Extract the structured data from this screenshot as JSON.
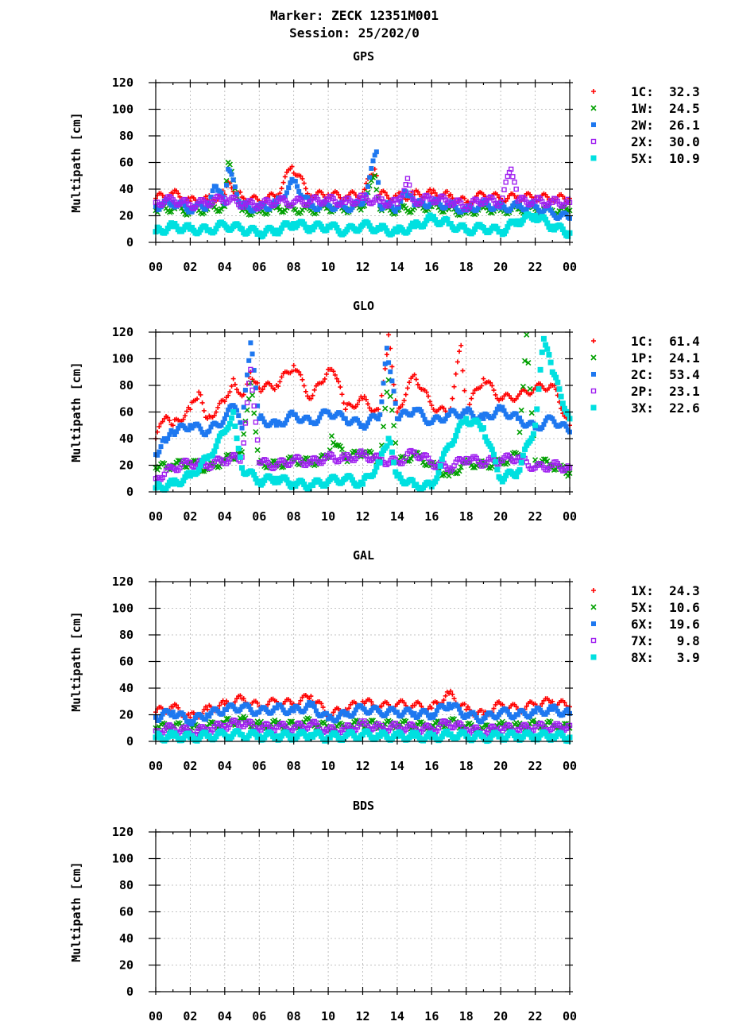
{
  "header": {
    "line1": "Marker: ZECK 12351M001",
    "line2": "Session: 25/202/0"
  },
  "colors": {
    "red": "#ff0000",
    "green": "#00a000",
    "blue": "#1e78f0",
    "purple": "#a020f0",
    "cyan": "#00e0e0"
  },
  "chart_data": [
    {
      "type": "scatter",
      "title": "GPS",
      "ylabel": "Multipath [cm]",
      "ylim": [
        0,
        120
      ],
      "xlim": [
        0,
        24
      ],
      "xticks": [
        "00",
        "02",
        "04",
        "06",
        "08",
        "10",
        "12",
        "14",
        "16",
        "18",
        "20",
        "22",
        "00"
      ],
      "yticks": [
        "0",
        "20",
        "40",
        "60",
        "80",
        "100",
        "120"
      ],
      "grid": true,
      "legend_position": "right",
      "series": [
        {
          "name": "1C",
          "rms": "32.3",
          "marker": "plus",
          "color": "red",
          "x": [
            0,
            1,
            2,
            3,
            4,
            4.2,
            5,
            6,
            7,
            7.9,
            9,
            10,
            11,
            12,
            12.7,
            13,
            14,
            15,
            16,
            17,
            18,
            19,
            20,
            21,
            22,
            23,
            24
          ],
          "y": [
            33,
            37,
            31,
            32,
            36,
            45,
            34,
            31,
            35,
            57,
            35,
            36,
            34,
            37,
            55,
            36,
            34,
            36,
            37,
            35,
            30,
            36,
            33,
            34,
            34,
            33,
            33
          ]
        },
        {
          "name": "1W",
          "rms": "24.5",
          "marker": "cross",
          "color": "green",
          "x": [
            0,
            1,
            2,
            3,
            4,
            4.2,
            5,
            6,
            7,
            8,
            9,
            10,
            11,
            12,
            12.7,
            13,
            14,
            15,
            16,
            17,
            18,
            19,
            20,
            21,
            22,
            23,
            24
          ],
          "y": [
            24,
            26,
            23,
            25,
            27,
            60,
            24,
            23,
            26,
            25,
            24,
            26,
            25,
            27,
            50,
            25,
            24,
            26,
            27,
            25,
            22,
            26,
            24,
            25,
            25,
            24,
            24
          ]
        },
        {
          "name": "2W",
          "rms": "26.1",
          "marker": "square",
          "color": "blue",
          "x": [
            0,
            1,
            2,
            3,
            3.5,
            4,
            4.2,
            5,
            6,
            7,
            8,
            9,
            10,
            11,
            12,
            12.8,
            13,
            14,
            14.5,
            15,
            16,
            17,
            18,
            19,
            20,
            21,
            22,
            23,
            24
          ],
          "y": [
            27,
            30,
            25,
            28,
            42,
            29,
            55,
            27,
            26,
            29,
            46,
            27,
            28,
            26,
            29,
            68,
            28,
            26,
            38,
            28,
            30,
            28,
            24,
            29,
            26,
            27,
            27,
            22,
            18
          ]
        },
        {
          "name": "2X",
          "rms": "30.0",
          "marker": "opensquare",
          "color": "purple",
          "x": [
            0,
            1,
            2,
            3,
            4,
            5,
            6,
            7,
            8,
            9,
            10,
            11,
            12,
            13,
            14,
            14.6,
            15,
            16,
            17,
            18,
            19,
            20,
            20.6,
            21,
            22,
            23,
            24
          ],
          "y": [
            30,
            32,
            28,
            30,
            33,
            29,
            28,
            31,
            30,
            31,
            32,
            30,
            33,
            31,
            29,
            48,
            31,
            33,
            31,
            27,
            32,
            30,
            55,
            31,
            31,
            30,
            30
          ]
        },
        {
          "name": "5X",
          "rms": "10.9",
          "marker": "filledsquare",
          "color": "cyan",
          "x": [
            0,
            1,
            2,
            3,
            4,
            5,
            6,
            7,
            8,
            9,
            10,
            11,
            12,
            13,
            14,
            15,
            16,
            17,
            18,
            19,
            20,
            21,
            22,
            23,
            24
          ],
          "y": [
            8,
            12,
            10,
            9,
            13,
            10,
            7,
            9,
            14,
            11,
            12,
            8,
            13,
            10,
            8,
            12,
            18,
            14,
            9,
            11,
            8,
            16,
            20,
            12,
            7
          ]
        }
      ]
    },
    {
      "type": "scatter",
      "title": "GLO",
      "ylabel": "Multipath [cm]",
      "ylim": [
        0,
        120
      ],
      "xlim": [
        0,
        24
      ],
      "xticks": [
        "00",
        "02",
        "04",
        "06",
        "08",
        "10",
        "12",
        "14",
        "16",
        "18",
        "20",
        "22",
        "00"
      ],
      "yticks": [
        "0",
        "20",
        "40",
        "60",
        "80",
        "100",
        "120"
      ],
      "grid": true,
      "legend_position": "right",
      "series": [
        {
          "name": "1C",
          "rms": "61.4",
          "marker": "plus",
          "color": "red",
          "x": [
            0,
            0.5,
            1,
            2,
            2.5,
            3,
            4,
            4.5,
            5,
            5.5,
            6,
            7,
            8,
            9,
            10,
            10.5,
            11,
            12,
            13,
            13.5,
            14,
            15,
            16,
            17,
            17.7,
            18,
            19,
            20,
            21,
            22,
            23,
            24
          ],
          "y": [
            40,
            55,
            50,
            62,
            75,
            55,
            68,
            85,
            72,
            90,
            78,
            80,
            95,
            70,
            92,
            85,
            62,
            70,
            58,
            118,
            60,
            88,
            65,
            58,
            110,
            62,
            85,
            70,
            72,
            78,
            80,
            50
          ]
        },
        {
          "name": "1P",
          "rms": "24.1",
          "marker": "cross",
          "color": "green",
          "x": [
            0,
            1,
            2,
            3,
            4,
            5,
            5.5,
            6,
            7,
            8,
            9,
            10,
            10.2,
            11,
            12,
            13,
            13.5,
            14,
            15,
            16,
            17,
            18,
            19,
            20,
            21,
            21.5,
            22,
            23,
            24
          ],
          "y": [
            18,
            20,
            22,
            17,
            24,
            30,
            82,
            22,
            20,
            24,
            22,
            26,
            42,
            25,
            30,
            24,
            84,
            22,
            28,
            20,
            12,
            22,
            20,
            22,
            28,
            118,
            24,
            20,
            14
          ]
        },
        {
          "name": "2C",
          "rms": "53.4",
          "marker": "square",
          "color": "blue",
          "x": [
            0,
            0.5,
            1,
            2,
            3,
            4,
            4.5,
            5,
            5.5,
            6,
            7,
            8,
            9,
            10,
            11,
            12,
            13,
            13.4,
            14,
            15,
            16,
            17,
            18,
            19,
            20,
            21,
            22,
            23,
            24
          ],
          "y": [
            28,
            40,
            45,
            50,
            45,
            55,
            65,
            48,
            112,
            55,
            50,
            58,
            52,
            60,
            55,
            50,
            58,
            108,
            55,
            62,
            52,
            58,
            60,
            55,
            62,
            55,
            48,
            55,
            45
          ]
        },
        {
          "name": "2P",
          "rms": "23.1",
          "marker": "opensquare",
          "color": "purple",
          "x": [
            0,
            1,
            2,
            3,
            4,
            5,
            5.5,
            6,
            7,
            8,
            9,
            10,
            11,
            12,
            13,
            14,
            15,
            16,
            17,
            18,
            19,
            20,
            21,
            22,
            23,
            24
          ],
          "y": [
            10,
            18,
            22,
            20,
            24,
            26,
            92,
            22,
            20,
            24,
            22,
            26,
            25,
            28,
            24,
            22,
            30,
            22,
            18,
            25,
            22,
            24,
            26,
            18,
            20,
            18
          ]
        },
        {
          "name": "3X",
          "rms": "22.6",
          "marker": "filledsquare",
          "color": "cyan",
          "x": [
            0,
            1,
            2,
            3,
            4,
            4.5,
            5,
            6,
            7,
            8,
            9,
            10,
            11,
            12,
            13,
            13.5,
            14,
            15,
            16,
            17,
            18,
            19,
            20,
            21,
            22,
            22.5,
            23,
            24
          ],
          "y": [
            3,
            6,
            12,
            25,
            45,
            60,
            18,
            8,
            10,
            6,
            5,
            8,
            10,
            6,
            22,
            40,
            12,
            5,
            4,
            35,
            55,
            48,
            10,
            15,
            50,
            115,
            90,
            55
          ]
        }
      ]
    },
    {
      "type": "scatter",
      "title": "GAL",
      "ylabel": "Multipath [cm]",
      "ylim": [
        0,
        120
      ],
      "xlim": [
        0,
        24
      ],
      "xticks": [
        "00",
        "02",
        "04",
        "06",
        "08",
        "10",
        "12",
        "14",
        "16",
        "18",
        "20",
        "22",
        "00"
      ],
      "yticks": [
        "0",
        "20",
        "40",
        "60",
        "80",
        "100",
        "120"
      ],
      "grid": true,
      "legend_position": "right",
      "series": [
        {
          "name": "1X",
          "rms": "24.3",
          "marker": "plus",
          "color": "red",
          "x": [
            0,
            1,
            2,
            3,
            4,
            5,
            6,
            7,
            8,
            9,
            10,
            11,
            12,
            13,
            14,
            15,
            16,
            17,
            18,
            19,
            20,
            21,
            22,
            23,
            24
          ],
          "y": [
            22,
            26,
            18,
            24,
            28,
            32,
            26,
            30,
            28,
            34,
            20,
            24,
            30,
            26,
            28,
            27,
            25,
            36,
            24,
            20,
            28,
            24,
            28,
            30,
            26
          ]
        },
        {
          "name": "5X",
          "rms": "10.6",
          "marker": "cross",
          "color": "green",
          "x": [
            0,
            1,
            2,
            3,
            4,
            5,
            6,
            7,
            8,
            9,
            10,
            11,
            12,
            13,
            14,
            15,
            16,
            17,
            18,
            19,
            20,
            21,
            22,
            23,
            24
          ],
          "y": [
            10,
            12,
            9,
            11,
            14,
            16,
            12,
            13,
            12,
            15,
            10,
            11,
            14,
            12,
            13,
            12,
            11,
            15,
            11,
            9,
            12,
            11,
            13,
            12,
            10
          ]
        },
        {
          "name": "6X",
          "rms": "19.6",
          "marker": "square",
          "color": "blue",
          "x": [
            0,
            1,
            2,
            3,
            4,
            5,
            6,
            7,
            8,
            9,
            10,
            11,
            12,
            13,
            14,
            15,
            16,
            17,
            18,
            19,
            20,
            21,
            22,
            23,
            24
          ],
          "y": [
            18,
            22,
            15,
            20,
            24,
            26,
            22,
            25,
            23,
            27,
            17,
            20,
            25,
            22,
            22,
            21,
            20,
            28,
            20,
            17,
            22,
            20,
            22,
            24,
            21
          ]
        },
        {
          "name": "7X",
          "rms": "9.8",
          "marker": "opensquare",
          "color": "purple",
          "x": [
            0,
            1,
            2,
            3,
            4,
            5,
            6,
            7,
            8,
            9,
            10,
            11,
            12,
            13,
            14,
            15,
            16,
            17,
            18,
            19,
            20,
            21,
            22,
            23,
            24
          ],
          "y": [
            8,
            10,
            7,
            9,
            12,
            14,
            10,
            11,
            10,
            13,
            8,
            9,
            13,
            10,
            11,
            10,
            9,
            14,
            9,
            7,
            10,
            9,
            11,
            10,
            12
          ]
        },
        {
          "name": "8X",
          "rms": "3.9",
          "marker": "filledsquare",
          "color": "cyan",
          "x": [
            0,
            1,
            2,
            3,
            4,
            5,
            6,
            7,
            8,
            9,
            10,
            11,
            12,
            13,
            14,
            15,
            16,
            17,
            18,
            19,
            20,
            21,
            22,
            23,
            24
          ],
          "y": [
            3,
            4,
            3,
            4,
            5,
            5,
            4,
            4,
            4,
            5,
            3,
            4,
            5,
            4,
            4,
            4,
            3,
            5,
            4,
            3,
            4,
            4,
            4,
            4,
            3
          ]
        }
      ]
    },
    {
      "type": "scatter",
      "title": "BDS",
      "ylabel": "Multipath [cm]",
      "ylim": [
        0,
        120
      ],
      "xlim": [
        0,
        24
      ],
      "xticks": [
        "00",
        "02",
        "04",
        "06",
        "08",
        "10",
        "12",
        "14",
        "16",
        "18",
        "20",
        "22",
        "00"
      ],
      "yticks": [
        "0",
        "20",
        "40",
        "60",
        "80",
        "100",
        "120"
      ],
      "grid": true,
      "series": []
    }
  ]
}
